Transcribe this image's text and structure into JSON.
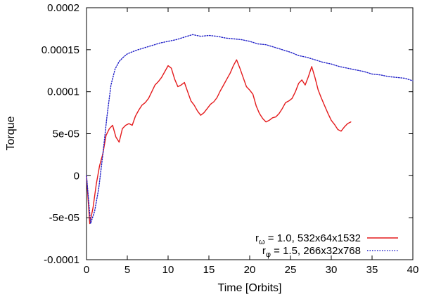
{
  "chart_data": {
    "type": "line",
    "xlabel": "Time [Orbits]",
    "ylabel": "Torque",
    "xlim": [
      0,
      40
    ],
    "ylim": [
      -0.0001,
      0.0002
    ],
    "x_ticks": [
      0,
      5,
      10,
      15,
      20,
      25,
      30,
      35,
      40
    ],
    "x_tick_labels": [
      "0",
      "5",
      "10",
      "15",
      "20",
      "25",
      "30",
      "35",
      "40"
    ],
    "y_ticks": [
      -0.0001,
      -5e-05,
      0,
      5e-05,
      0.0001,
      0.00015,
      0.0002
    ],
    "y_tick_labels": [
      "-0.0001",
      "-5e-05",
      "0",
      "5e-05",
      "0.0001",
      "0.00015",
      "0.0002"
    ],
    "grid": false,
    "legend_position": "bottom-right",
    "series": [
      {
        "legend_main": "r",
        "legend_sub": "ω",
        "legend_rest": " = 1.0, 532x64x1532",
        "color": "#e41a1c",
        "style": "solid",
        "x": [
          0,
          0.4,
          0.8,
          1.2,
          1.6,
          2.0,
          2.4,
          2.8,
          3.2,
          3.6,
          4.0,
          4.4,
          4.8,
          5.2,
          5.6,
          6.0,
          6.4,
          6.8,
          7.2,
          7.6,
          8.0,
          8.4,
          8.8,
          9.2,
          9.6,
          10.0,
          10.4,
          10.8,
          11.2,
          11.6,
          12.0,
          12.4,
          12.8,
          13.2,
          13.6,
          14.0,
          14.4,
          14.8,
          15.2,
          15.6,
          16.0,
          16.4,
          16.8,
          17.2,
          17.6,
          18.0,
          18.4,
          18.8,
          19.2,
          19.6,
          20.0,
          20.4,
          20.8,
          21.2,
          21.6,
          22.0,
          22.4,
          22.8,
          23.2,
          23.6,
          24.0,
          24.4,
          24.8,
          25.2,
          25.6,
          26.0,
          26.4,
          26.8,
          27.2,
          27.6,
          28.0,
          28.4,
          28.8,
          29.2,
          29.6,
          30.0,
          30.4,
          30.8,
          31.2,
          31.6,
          32.0,
          32.4
        ],
        "y": [
          0,
          -5.7e-05,
          -3.8e-05,
          -1e-05,
          1.2e-05,
          2.6e-05,
          4.8e-05,
          5.6e-05,
          6e-05,
          4.6e-05,
          4e-05,
          5.6e-05,
          6e-05,
          6.2e-05,
          6e-05,
          7.1e-05,
          7.8e-05,
          8.4e-05,
          8.7e-05,
          9.2e-05,
          0.0001,
          0.000108,
          0.000112,
          0.000117,
          0.000124,
          0.000131,
          0.000128,
          0.000115,
          0.000106,
          0.000108,
          0.000111,
          0.0001,
          8.9e-05,
          8.4e-05,
          7.7e-05,
          7.2e-05,
          7.5e-05,
          8e-05,
          8.5e-05,
          8.8e-05,
          9.3e-05,
          0.000101,
          0.000108,
          0.000115,
          0.000122,
          0.000131,
          0.000138,
          0.000128,
          0.000117,
          0.000106,
          0.000102,
          9.7e-05,
          8.3e-05,
          7.4e-05,
          6.8e-05,
          6.4e-05,
          6.6e-05,
          6.9e-05,
          7e-05,
          7.4e-05,
          8e-05,
          8.7e-05,
          8.9e-05,
          9.2e-05,
          0.0001,
          0.00011,
          0.000114,
          0.000108,
          0.000118,
          0.00013,
          0.000117,
          0.000102,
          9.2e-05,
          8.3e-05,
          7.4e-05,
          6.6e-05,
          6.1e-05,
          5.5e-05,
          5.3e-05,
          5.8e-05,
          6.2e-05,
          6.4e-05
        ]
      },
      {
        "legend_main": "r",
        "legend_sub": "φ",
        "legend_rest": " = 1.5, 266x32x768",
        "color": "#2020c8",
        "style": "dotted",
        "x": [
          0,
          0.5,
          1.0,
          1.5,
          2.0,
          2.5,
          3.0,
          3.5,
          4.0,
          4.5,
          5.0,
          6.0,
          7.0,
          8.0,
          9.0,
          10.0,
          11.0,
          12.0,
          13.0,
          14.0,
          15.0,
          16.0,
          17.0,
          18.0,
          19.0,
          20.0,
          21.0,
          22.0,
          23.0,
          24.0,
          25.0,
          26.0,
          27.0,
          28.0,
          29.0,
          30.0,
          31.0,
          32.0,
          33.0,
          34.0,
          35.0,
          36.0,
          37.0,
          38.0,
          39.0,
          40.0
        ],
        "y": [
          0,
          -5.7e-05,
          -4.2e-05,
          -1.5e-05,
          2.5e-05,
          7e-05,
          0.000108,
          0.000127,
          0.000136,
          0.000141,
          0.000145,
          0.000149,
          0.000152,
          0.000155,
          0.000158,
          0.00016,
          0.000162,
          0.000165,
          0.000168,
          0.000166,
          0.000167,
          0.000166,
          0.000164,
          0.000163,
          0.000162,
          0.00016,
          0.000157,
          0.000156,
          0.000153,
          0.00015,
          0.000147,
          0.000143,
          0.000141,
          0.000138,
          0.000135,
          0.000133,
          0.00013,
          0.000128,
          0.000126,
          0.000124,
          0.000121,
          0.00012,
          0.000118,
          0.000117,
          0.000116,
          0.000113
        ]
      }
    ]
  }
}
